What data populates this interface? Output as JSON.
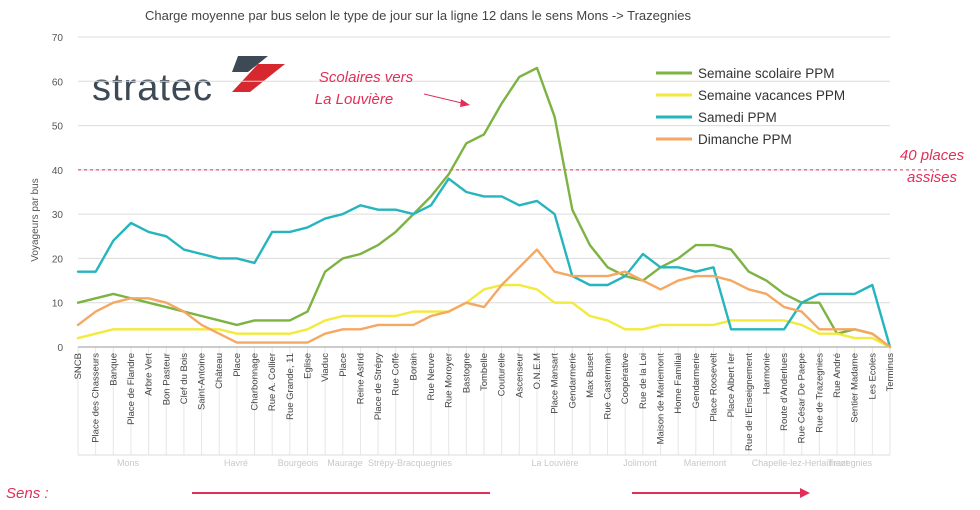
{
  "chart_data": {
    "type": "line",
    "title": "Charge moyenne par bus selon le type de jour sur la ligne 12 dans le sens Mons -> Trazegnies",
    "ylabel": "Voyageurs par bus",
    "ylim": [
      0,
      70
    ],
    "yticks": [
      0,
      10,
      20,
      30,
      40,
      50,
      60,
      70
    ],
    "grid": true,
    "legend_position": "top-right",
    "categories": [
      "SNCB",
      "Place des Chasseurs",
      "Banque",
      "Place de Flandre",
      "Arbre Vert",
      "Bon Pasteur",
      "Clef du Bois",
      "Saint-Antoine",
      "Château",
      "Place",
      "Charbonnage",
      "Rue A. Collier",
      "Rue Grande, 11",
      "Eglise",
      "Viaduc",
      "Place",
      "Reine Astrid",
      "Place de Strépy",
      "Rue Coffé",
      "Borain",
      "Rue Neuve",
      "Rue Moroyer",
      "Bastogne",
      "Tombelle",
      "Couturelle",
      "Ascenseur",
      "O.N.E.M",
      "Place Mansart",
      "Gendarmerie",
      "Max Buset",
      "Rue Casterman",
      "Coopérative",
      "Rue de la Loi",
      "Maison de Mariemont",
      "Home Familial",
      "Gendarmerie",
      "Place Roosevelt",
      "Place Albert Ier",
      "Rue de l'Enseignement",
      "Harmonie",
      "Route d'Anderlues",
      "Rue César De Paepe",
      "Rue de Trazegnies",
      "Rue André",
      "Sentier Madame",
      "Les Ecoles",
      "Terminus"
    ],
    "series": [
      {
        "name": "Semaine scolaire PPM",
        "color": "#7cb342",
        "values": [
          10,
          11,
          12,
          11,
          10,
          9,
          8,
          7,
          6,
          5,
          6,
          6,
          6,
          8,
          17,
          20,
          21,
          23,
          26,
          30,
          34,
          39,
          46,
          48,
          55,
          61,
          63,
          52,
          31,
          23,
          18,
          16,
          15,
          18,
          20,
          23,
          23,
          22,
          17,
          15,
          12,
          10,
          10,
          3,
          4,
          3,
          0
        ]
      },
      {
        "name": "Semaine vacances PPM",
        "color": "#f2ea3c",
        "values": [
          2,
          3,
          4,
          4,
          4,
          4,
          4,
          4,
          4,
          3,
          3,
          3,
          3,
          4,
          6,
          7,
          7,
          7,
          7,
          8,
          8,
          8,
          10,
          13,
          14,
          14,
          13,
          10,
          10,
          7,
          6,
          4,
          4,
          5,
          5,
          5,
          5,
          6,
          6,
          6,
          6,
          5,
          3,
          3,
          2,
          2,
          0
        ]
      },
      {
        "name": "Samedi PPM",
        "color": "#26b5be",
        "values": [
          17,
          17,
          24,
          28,
          26,
          25,
          22,
          21,
          20,
          20,
          19,
          26,
          26,
          27,
          29,
          30,
          32,
          31,
          31,
          30,
          32,
          38,
          35,
          34,
          34,
          32,
          33,
          30,
          16,
          14,
          14,
          16,
          21,
          18,
          18,
          17,
          18,
          4,
          4,
          4,
          4,
          10,
          12,
          12,
          12,
          14,
          0
        ]
      },
      {
        "name": "Dimanche PPM",
        "color": "#f5a862",
        "values": [
          5,
          8,
          10,
          11,
          11,
          10,
          8,
          5,
          3,
          1,
          1,
          1,
          1,
          1,
          3,
          4,
          4,
          5,
          5,
          5,
          7,
          8,
          10,
          9,
          14,
          18,
          22,
          17,
          16,
          16,
          16,
          17,
          15,
          13,
          15,
          16,
          16,
          15,
          13,
          12,
          9,
          8,
          4,
          4,
          4,
          3,
          0
        ]
      }
    ],
    "reference_line": {
      "value": 40,
      "label_line1": "40 places",
      "label_line2": "assises",
      "color": "#e0305a"
    },
    "annotation": {
      "line1": "Scolaires vers",
      "line2": "La Louvière",
      "target_category_index": 22,
      "color": "#e0305a"
    },
    "zones": [
      "Mons",
      "Havré",
      "Bourgeois",
      "Maurage",
      "Strépy-Bracquegnies",
      "La Louvière",
      "Jolimont",
      "Mariemont",
      "Chapelle-lez-Herlaimont",
      "Trazegnies"
    ]
  },
  "logo": {
    "text": "stratec",
    "color_dark": "#3d4a56",
    "color_red": "#d7282f"
  },
  "footer": {
    "sens_label": "Sens :",
    "arrow_color": "#e0305a"
  }
}
